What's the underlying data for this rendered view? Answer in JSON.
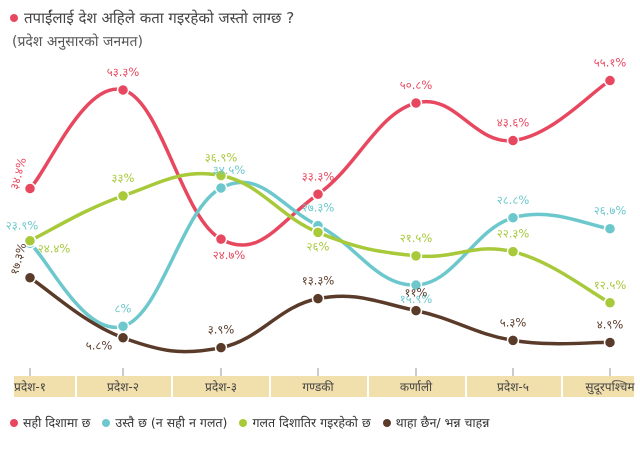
{
  "header": {
    "title": "तपाईंलाई देश अहिले कता गइरहेको जस्तो लाग्छ ?",
    "subtitle": "(प्रदेश अनुसारको जनमत)"
  },
  "chart_data": {
    "type": "line",
    "title": "तपाईंलाई देश अहिले कता गइरहेको जस्तो लाग्छ ?",
    "subtitle": "(प्रदेश अनुसारको जनमत)",
    "categories": [
      "प्रदेश-१",
      "प्रदेश-२",
      "प्रदेश-३",
      "गण्डकी",
      "कर्णाली",
      "प्रदेश-५",
      "सुदूरपश्चिम"
    ],
    "ylim": [
      0,
      60
    ],
    "grid": false,
    "legend_position": "bottom",
    "series": [
      {
        "name": "सही दिशामा छ",
        "color": "#e8485f",
        "values": [
          34.4,
          53.3,
          24.7,
          33.3,
          50.8,
          43.6,
          55.1
        ],
        "labels": [
          "३४.४%",
          "५३.३%",
          "२४.७%",
          "३३.३%",
          "५०.८%",
          "४३.६%",
          "५५.१%"
        ]
      },
      {
        "name": "उस्तै छ (न सही न गलत)",
        "color": "#6cc8cc",
        "values": [
          23.9,
          8.0,
          34.5,
          27.3,
          15.9,
          28.8,
          26.7
        ],
        "labels": [
          "२३.९%",
          "८%",
          "३४.५%",
          "२७.३%",
          "१५.९%",
          "२८.८%",
          "२६.७%"
        ]
      },
      {
        "name": "गलत दिशातिर गइरहेको छ",
        "color": "#a7c93a",
        "values": [
          24.4,
          33.0,
          36.9,
          26.0,
          21.5,
          22.3,
          12.5
        ],
        "labels": [
          "२४.४%",
          "३३%",
          "३६.९%",
          "२६%",
          "२१.५%",
          "२२.३%",
          "१२.५%"
        ]
      },
      {
        "name": "थाहा छैन/ भन्न चाहन्न",
        "color": "#5a3b2a",
        "values": [
          17.3,
          5.8,
          3.9,
          13.3,
          11.0,
          5.3,
          4.9
        ],
        "labels": [
          "१७.३%",
          "५.८%",
          "३.९%",
          "१३.३%",
          "११%",
          "५.३%",
          "४.९%"
        ]
      }
    ]
  }
}
